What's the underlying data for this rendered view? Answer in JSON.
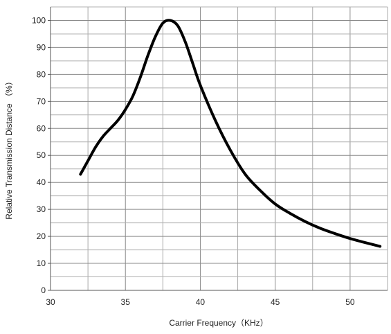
{
  "chart_data": {
    "type": "line",
    "xlabel": "Carrier Frequency（KHz）",
    "ylabel": "Relative Transmission Distance （%）",
    "xlim": [
      30,
      52.5
    ],
    "ylim": [
      0,
      105
    ],
    "x_ticks": [
      30,
      35,
      40,
      45,
      50
    ],
    "y_ticks": [
      0,
      10,
      20,
      30,
      40,
      50,
      60,
      70,
      80,
      90,
      100
    ],
    "grid": true,
    "line_color": "#000000",
    "series": [
      {
        "x": [
          32,
          32.5,
          33,
          33.5,
          34,
          34.5,
          35,
          35.5,
          36,
          36.5,
          37,
          37.5,
          38,
          38.5,
          39,
          39.5,
          40,
          41,
          42,
          43,
          44,
          45,
          46,
          47,
          48,
          49,
          50,
          51,
          52
        ],
        "y": [
          43,
          48,
          53,
          57,
          60,
          63,
          67,
          72,
          79,
          87,
          94,
          99,
          100,
          98,
          92,
          84,
          76,
          63,
          52,
          43,
          37,
          32,
          28.5,
          25.5,
          23,
          21,
          19.2,
          17.7,
          16.3
        ]
      }
    ]
  }
}
